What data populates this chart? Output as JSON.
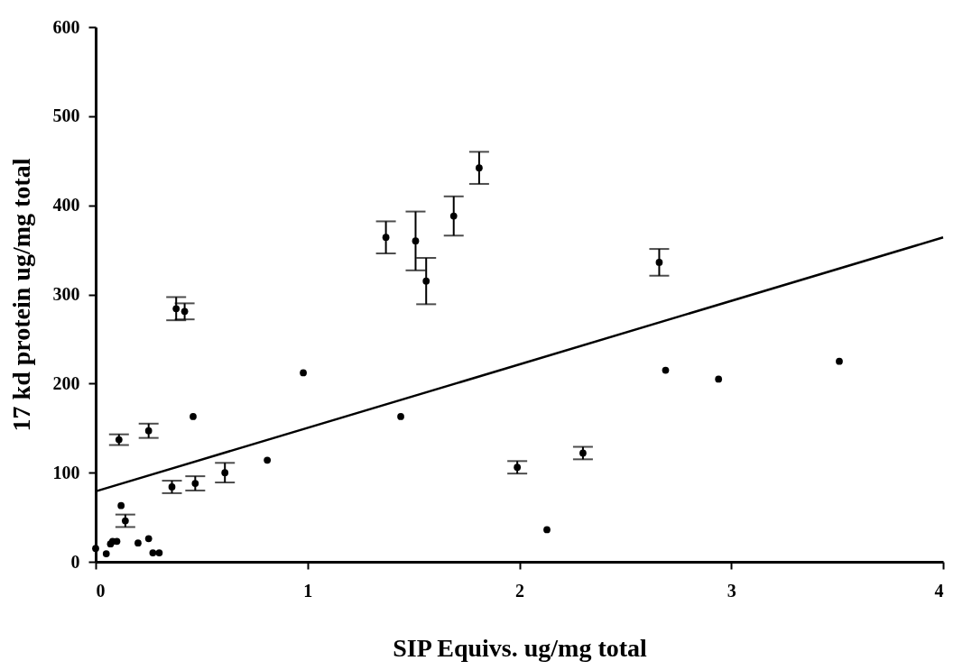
{
  "chart_data": {
    "type": "scatter",
    "xlabel": "SIP Equivs. ug/mg total",
    "ylabel": "17 kd protein ug/mg total",
    "xlim": [
      0,
      4
    ],
    "xticks": [
      0,
      1,
      2,
      3,
      4
    ],
    "ylim": [
      0,
      600
    ],
    "yticks": [
      0,
      100,
      200,
      300,
      400,
      500,
      600
    ],
    "grid": false,
    "marker": "circle",
    "series": [
      {
        "color": "#000000",
        "x": [
          0.0,
          0.05,
          0.07,
          0.08,
          0.1,
          0.12,
          0.14,
          0.11,
          0.25,
          0.2,
          0.25,
          0.27,
          0.3,
          0.36,
          0.47,
          0.61,
          0.81,
          0.46,
          0.98,
          0.38,
          0.42,
          1.44,
          1.37,
          1.51,
          1.56,
          1.69,
          1.81,
          2.66,
          2.69,
          2.94,
          1.99,
          2.3,
          2.13,
          3.51
        ],
        "values": [
          15,
          9,
          20,
          23,
          23,
          63,
          46,
          137,
          147,
          21,
          26,
          10,
          10,
          84,
          88,
          100,
          114,
          163,
          212,
          284,
          281,
          163,
          364,
          360,
          315,
          388,
          442,
          336,
          215,
          205,
          106,
          122,
          36,
          225
        ],
        "errors": [
          null,
          null,
          null,
          null,
          null,
          null,
          7,
          6,
          8,
          null,
          null,
          null,
          null,
          7,
          8,
          11,
          null,
          null,
          null,
          13,
          9,
          null,
          18,
          33,
          26,
          22,
          18,
          15,
          null,
          null,
          7,
          7,
          null,
          null
        ]
      },
      {
        "type": "line",
        "color": "#000000",
        "marker": "none",
        "x": [
          0,
          4
        ],
        "values": [
          79,
          364
        ]
      }
    ]
  }
}
